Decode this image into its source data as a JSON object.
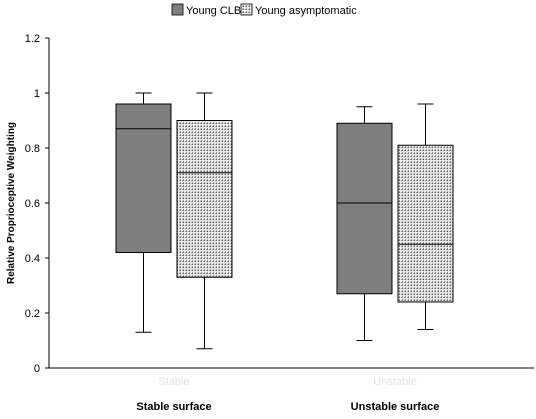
{
  "chart_data": {
    "type": "boxplot",
    "title": "",
    "xlabel": "",
    "ylabel": "Relative Proprioceptive Weighting",
    "ylim": [
      0,
      1.2
    ],
    "yticks": [
      "0",
      "0.2",
      "0.4",
      "0.6",
      "0.8",
      "1",
      "1.2"
    ],
    "categories": [
      "Stable surface",
      "Unstable surface"
    ],
    "faint_category_labels": [
      "Stable",
      "Unstable"
    ],
    "legend_position": "top-center",
    "grid": false,
    "series": [
      {
        "name": "Young CLBP",
        "fill": "solid-gray",
        "color": "#7f7f7f",
        "boxes": [
          {
            "min": 0.13,
            "q1": 0.42,
            "median": 0.87,
            "q3": 0.96,
            "max": 1.0
          },
          {
            "min": 0.1,
            "q1": 0.27,
            "median": 0.6,
            "q3": 0.89,
            "max": 0.95
          }
        ]
      },
      {
        "name": "Young asymptomatic",
        "fill": "dotted-grid",
        "color": "#b0b0b0",
        "boxes": [
          {
            "min": 0.07,
            "q1": 0.33,
            "median": 0.71,
            "q3": 0.9,
            "max": 1.0
          },
          {
            "min": 0.14,
            "q1": 0.24,
            "median": 0.45,
            "q3": 0.81,
            "max": 0.96
          }
        ]
      }
    ]
  }
}
